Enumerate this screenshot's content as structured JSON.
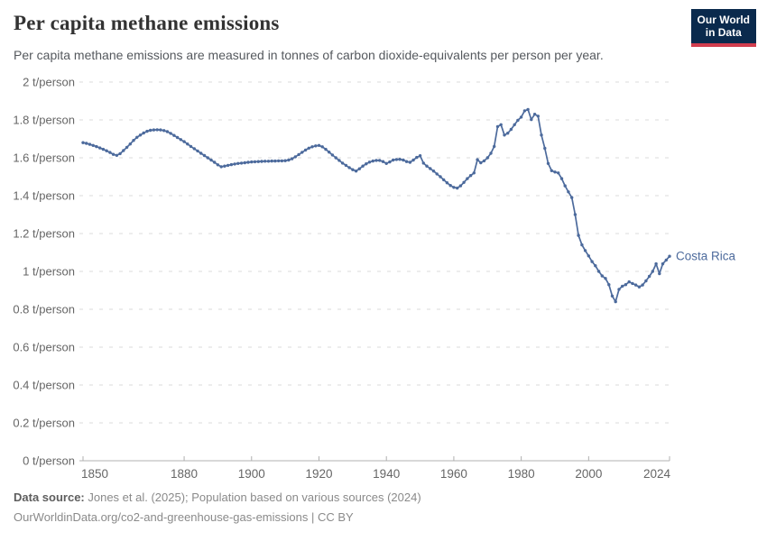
{
  "header": {
    "title": "Per capita methane emissions",
    "subtitle": "Per capita methane emissions are measured in tonnes of carbon dioxide-equivalents per person per year.",
    "logo": {
      "line1": "Our World",
      "line2": "in Data"
    }
  },
  "chart_data": {
    "type": "line",
    "title": "Per capita methane emissions",
    "entity_label": "Costa Rica",
    "unit": "t/person",
    "line_color": "#4C6A9C",
    "xlim": [
      1850,
      2024
    ],
    "ylim": [
      0,
      2
    ],
    "grid": "dashed horizontal gridlines",
    "legend_position": "end-of-line label",
    "x_ticks": [
      1850,
      1880,
      1900,
      1920,
      1940,
      1960,
      1980,
      2000,
      2024
    ],
    "y_ticks": [
      {
        "value": 0,
        "label": "0 t/person"
      },
      {
        "value": 0.2,
        "label": "0.2 t/person"
      },
      {
        "value": 0.4,
        "label": "0.4 t/person"
      },
      {
        "value": 0.6,
        "label": "0.6 t/person"
      },
      {
        "value": 0.8,
        "label": "0.8 t/person"
      },
      {
        "value": 1,
        "label": "1 t/person"
      },
      {
        "value": 1.2,
        "label": "1.2 t/person"
      },
      {
        "value": 1.4,
        "label": "1.4 t/person"
      },
      {
        "value": 1.6,
        "label": "1.6 t/person"
      },
      {
        "value": 1.8,
        "label": "1.8 t/person"
      },
      {
        "value": 2,
        "label": "2 t/person"
      }
    ],
    "x_start": 1850,
    "x_step": 1,
    "series": [
      {
        "name": "Costa Rica",
        "values": [
          1.68,
          1.676,
          1.671,
          1.665,
          1.659,
          1.652,
          1.645,
          1.637,
          1.628,
          1.618,
          1.613,
          1.622,
          1.638,
          1.655,
          1.673,
          1.692,
          1.708,
          1.72,
          1.731,
          1.74,
          1.745,
          1.747,
          1.748,
          1.747,
          1.744,
          1.738,
          1.729,
          1.718,
          1.707,
          1.696,
          1.685,
          1.673,
          1.66,
          1.648,
          1.636,
          1.624,
          1.612,
          1.6,
          1.588,
          1.576,
          1.563,
          1.553,
          1.556,
          1.56,
          1.564,
          1.567,
          1.57,
          1.572,
          1.574,
          1.576,
          1.578,
          1.579,
          1.58,
          1.581,
          1.582,
          1.582,
          1.583,
          1.583,
          1.584,
          1.584,
          1.585,
          1.588,
          1.595,
          1.605,
          1.617,
          1.629,
          1.641,
          1.651,
          1.658,
          1.663,
          1.665,
          1.658,
          1.645,
          1.63,
          1.615,
          1.6,
          1.586,
          1.572,
          1.56,
          1.548,
          1.537,
          1.53,
          1.542,
          1.556,
          1.568,
          1.577,
          1.583,
          1.586,
          1.586,
          1.58,
          1.57,
          1.578,
          1.588,
          1.591,
          1.592,
          1.588,
          1.58,
          1.576,
          1.588,
          1.602,
          1.611,
          1.572,
          1.556,
          1.543,
          1.53,
          1.515,
          1.5,
          1.484,
          1.468,
          1.454,
          1.444,
          1.44,
          1.452,
          1.47,
          1.49,
          1.506,
          1.52,
          1.59,
          1.574,
          1.584,
          1.6,
          1.624,
          1.66,
          1.765,
          1.775,
          1.72,
          1.73,
          1.75,
          1.775,
          1.798,
          1.815,
          1.848,
          1.855,
          1.802,
          1.83,
          1.82,
          1.72,
          1.65,
          1.57,
          1.532,
          1.525,
          1.52,
          1.49,
          1.452,
          1.42,
          1.39,
          1.3,
          1.19,
          1.14,
          1.11,
          1.082,
          1.052,
          1.03,
          1.0,
          0.976,
          0.963,
          0.93,
          0.87,
          0.84,
          0.905,
          0.922,
          0.93,
          0.945,
          0.936,
          0.928,
          0.918,
          0.928,
          0.95,
          0.974,
          1.0,
          1.04,
          0.988,
          1.04,
          1.06,
          1.08
        ]
      }
    ]
  },
  "footer": {
    "source_label": "Data source:",
    "source_text": " Jones et al. (2025); Population based on various sources (2024)",
    "license_line": "OurWorldinData.org/co2-and-greenhouse-gas-emissions | CC BY"
  },
  "colors": {
    "line": "#4C6A9C",
    "gridline": "#e2e2e2",
    "axis": "#b0b0b0",
    "tick_label": "#666666",
    "logo_bg": "#0a2a4d",
    "logo_red": "#d13d4e"
  }
}
